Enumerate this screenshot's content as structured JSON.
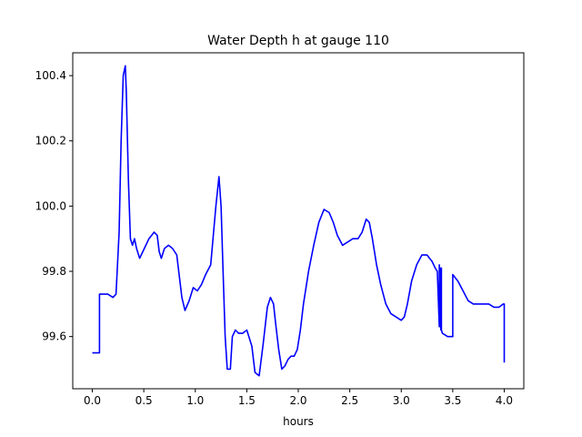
{
  "chart_data": {
    "type": "line",
    "title": "Water Depth h at gauge 110",
    "xlabel": "hours",
    "ylabel": "",
    "xlim": [
      -0.19,
      4.19
    ],
    "ylim": [
      99.44,
      100.47
    ],
    "xticks": [
      0.0,
      0.5,
      1.0,
      1.5,
      2.0,
      2.5,
      3.0,
      3.5,
      4.0
    ],
    "xtick_labels": [
      "0.0",
      "0.5",
      "1.0",
      "1.5",
      "2.0",
      "2.5",
      "3.0",
      "3.5",
      "4.0"
    ],
    "yticks": [
      99.6,
      99.8,
      100.0,
      100.2,
      100.4
    ],
    "ytick_labels": [
      "99.6",
      "99.8",
      "100.0",
      "100.2",
      "100.4"
    ],
    "grid": false,
    "series": [
      {
        "color": "#0000ff",
        "x": [
          0.0,
          0.07,
          0.07,
          0.1,
          0.15,
          0.2,
          0.23,
          0.26,
          0.28,
          0.3,
          0.32,
          0.33,
          0.35,
          0.37,
          0.39,
          0.41,
          0.43,
          0.46,
          0.49,
          0.55,
          0.6,
          0.63,
          0.65,
          0.67,
          0.7,
          0.74,
          0.78,
          0.82,
          0.87,
          0.9,
          0.94,
          0.98,
          1.02,
          1.06,
          1.1,
          1.15,
          1.2,
          1.23,
          1.25,
          1.27,
          1.29,
          1.31,
          1.34,
          1.36,
          1.39,
          1.42,
          1.46,
          1.5,
          1.55,
          1.58,
          1.62,
          1.66,
          1.7,
          1.73,
          1.76,
          1.78,
          1.81,
          1.84,
          1.87,
          1.9,
          1.93,
          1.96,
          1.99,
          2.02,
          2.05,
          2.1,
          2.15,
          2.2,
          2.25,
          2.3,
          2.34,
          2.38,
          2.43,
          2.48,
          2.53,
          2.58,
          2.62,
          2.66,
          2.69,
          2.72,
          2.76,
          2.8,
          2.85,
          2.9,
          2.95,
          3.0,
          3.03,
          3.06,
          3.1,
          3.15,
          3.2,
          3.25,
          3.3,
          3.33,
          3.35,
          3.37,
          3.37,
          3.375,
          3.38,
          3.385,
          3.39,
          3.39,
          3.4,
          3.45,
          3.5,
          3.5,
          3.55,
          3.6,
          3.65,
          3.7,
          3.75,
          3.8,
          3.85,
          3.9,
          3.95,
          3.99,
          4.0,
          4.0
        ],
        "y": [
          99.55,
          99.55,
          99.73,
          99.73,
          99.73,
          99.72,
          99.73,
          99.92,
          100.2,
          100.4,
          100.43,
          100.35,
          100.08,
          99.9,
          99.88,
          99.9,
          99.87,
          99.84,
          99.86,
          99.9,
          99.92,
          99.91,
          99.86,
          99.84,
          99.87,
          99.88,
          99.87,
          99.85,
          99.72,
          99.68,
          99.71,
          99.75,
          99.74,
          99.76,
          99.79,
          99.82,
          100.0,
          100.09,
          100.0,
          99.8,
          99.6,
          99.5,
          99.5,
          99.6,
          99.62,
          99.61,
          99.61,
          99.62,
          99.57,
          99.49,
          99.48,
          99.58,
          99.69,
          99.72,
          99.7,
          99.64,
          99.56,
          99.5,
          99.51,
          99.53,
          99.54,
          99.54,
          99.56,
          99.62,
          99.7,
          99.8,
          99.88,
          99.95,
          99.99,
          99.98,
          99.95,
          99.91,
          99.88,
          99.89,
          99.9,
          99.9,
          99.92,
          99.96,
          99.95,
          99.9,
          99.82,
          99.76,
          99.7,
          99.67,
          99.66,
          99.65,
          99.66,
          99.7,
          99.77,
          99.82,
          99.85,
          99.85,
          99.83,
          99.81,
          99.8,
          99.63,
          99.82,
          99.64,
          99.81,
          99.62,
          99.81,
          99.62,
          99.61,
          99.6,
          99.6,
          99.79,
          99.77,
          99.74,
          99.71,
          99.7,
          99.7,
          99.7,
          99.7,
          99.69,
          99.69,
          99.7,
          99.7,
          99.52
        ]
      }
    ]
  }
}
